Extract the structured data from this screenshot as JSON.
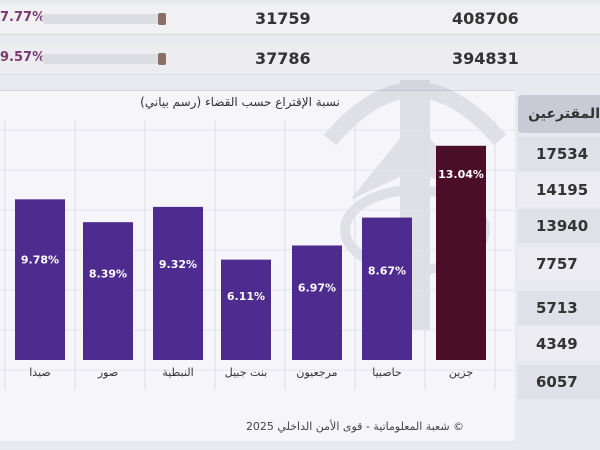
{
  "top_rows": [
    {
      "percent": "7.77%",
      "value_a": "31759",
      "value_b": "408706"
    },
    {
      "percent": "9.57%",
      "value_a": "37786",
      "value_b": "394831"
    }
  ],
  "side_table": {
    "header": "المقترعين",
    "values": [
      "17534",
      "14195",
      "13940",
      "7757",
      "5713",
      "4349",
      "6057"
    ]
  },
  "chart_data": {
    "type": "bar",
    "title": "نسبة الإقتراع حسب القضاء (رسم بياني)",
    "categories": [
      "صيدا",
      "صور",
      "النبطية",
      "بنت جبيل",
      "مرجعيون",
      "حاصبيا",
      "جزين"
    ],
    "values": [
      9.78,
      8.39,
      9.32,
      6.11,
      6.97,
      8.67,
      13.04
    ],
    "data_labels": [
      "9.78%",
      "8.39%",
      "9.32%",
      "6.11%",
      "6.97%",
      "8.67%",
      "13.04%"
    ],
    "ylim": [
      0,
      14
    ],
    "grid": true,
    "colors": {
      "bar": "#4e2b8f",
      "highlight": "#4a0f26",
      "label": "#ffffff"
    }
  },
  "footer": "© شعبة المعلوماتية - قوى الأمن الداخلي 2025"
}
